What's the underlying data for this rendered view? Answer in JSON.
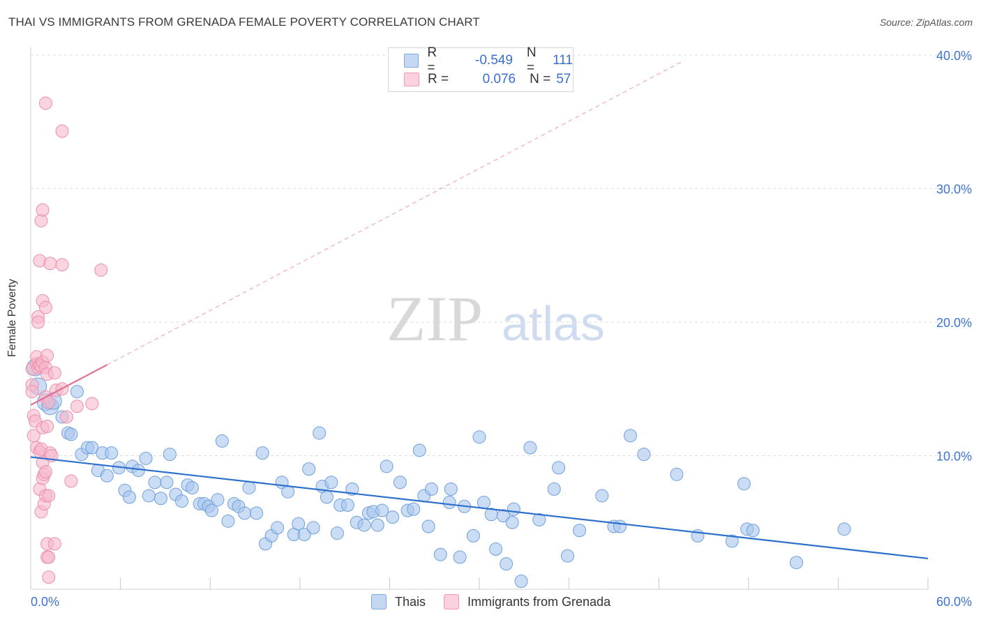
{
  "title": "THAI VS IMMIGRANTS FROM GRENADA FEMALE POVERTY CORRELATION CHART",
  "source": "Source: ZipAtlas.com",
  "watermark": {
    "zip": "ZIP",
    "atlas": "atlas"
  },
  "legend_top": [
    {
      "r_label": "R =",
      "r_value": "-0.549",
      "n_label": "N =",
      "n_value": "111",
      "color": "#a9c7ef"
    },
    {
      "r_label": "R =",
      "r_value": "0.076",
      "n_label": "N =",
      "n_value": "57",
      "color": "#f6b8ca"
    }
  ],
  "legend_bottom": [
    {
      "label": "Thais",
      "color": "#a9c7ef"
    },
    {
      "label": "Immigrants from Grenada",
      "color": "#f6b8ca"
    }
  ],
  "chart_data": {
    "type": "scatter",
    "title": "THAI VS IMMIGRANTS FROM GRENADA FEMALE POVERTY CORRELATION CHART",
    "xlabel": "",
    "ylabel": "Female Poverty",
    "xlim": [
      0,
      60
    ],
    "ylim": [
      0,
      40
    ],
    "x_tick_labels": [
      "0.0%",
      "60.0%"
    ],
    "y_ticks": [
      10,
      20,
      30,
      40
    ],
    "y_tick_labels": [
      "10.0%",
      "20.0%",
      "30.0%",
      "40.0%"
    ],
    "grid": true,
    "legend_position": "top-center",
    "series": [
      {
        "name": "Thais",
        "color": "#6e9fdc",
        "fill": "#a9c7ef",
        "trend": {
          "x": [
            0,
            60
          ],
          "y": [
            9.9,
            2.3
          ],
          "style": "solid",
          "stroke": "#2d6fcc"
        },
        "points": [
          [
            0.3,
            16.6
          ],
          [
            0.5,
            15.2
          ],
          [
            1.0,
            14.0
          ],
          [
            1.3,
            13.7
          ],
          [
            1.5,
            14.1
          ],
          [
            2.1,
            12.9
          ],
          [
            2.5,
            11.7
          ],
          [
            2.7,
            11.6
          ],
          [
            3.1,
            14.8
          ],
          [
            3.4,
            10.1
          ],
          [
            3.8,
            10.6
          ],
          [
            4.1,
            10.6
          ],
          [
            4.5,
            8.9
          ],
          [
            4.8,
            10.2
          ],
          [
            5.1,
            8.5
          ],
          [
            5.4,
            10.2
          ],
          [
            5.9,
            9.1
          ],
          [
            6.3,
            7.4
          ],
          [
            6.6,
            6.9
          ],
          [
            6.8,
            9.2
          ],
          [
            7.2,
            8.9
          ],
          [
            7.7,
            9.8
          ],
          [
            7.9,
            7.0
          ],
          [
            8.3,
            8.0
          ],
          [
            8.7,
            6.8
          ],
          [
            9.1,
            8.0
          ],
          [
            9.3,
            10.1
          ],
          [
            9.7,
            7.1
          ],
          [
            10.1,
            6.6
          ],
          [
            10.5,
            7.8
          ],
          [
            10.8,
            7.6
          ],
          [
            11.3,
            6.4
          ],
          [
            11.6,
            6.4
          ],
          [
            11.9,
            6.2
          ],
          [
            12.1,
            5.9
          ],
          [
            12.5,
            6.7
          ],
          [
            12.8,
            11.1
          ],
          [
            13.2,
            5.1
          ],
          [
            13.6,
            6.4
          ],
          [
            13.9,
            6.2
          ],
          [
            14.3,
            5.7
          ],
          [
            14.6,
            7.6
          ],
          [
            15.1,
            5.7
          ],
          [
            15.5,
            10.2
          ],
          [
            15.7,
            3.4
          ],
          [
            16.1,
            4.0
          ],
          [
            16.5,
            4.6
          ],
          [
            16.8,
            8.0
          ],
          [
            17.2,
            7.3
          ],
          [
            17.6,
            4.1
          ],
          [
            17.9,
            4.9
          ],
          [
            18.3,
            4.1
          ],
          [
            18.6,
            9.0
          ],
          [
            18.9,
            4.6
          ],
          [
            19.3,
            11.7
          ],
          [
            19.5,
            7.7
          ],
          [
            19.8,
            6.9
          ],
          [
            20.1,
            8.0
          ],
          [
            20.5,
            4.2
          ],
          [
            20.7,
            6.3
          ],
          [
            21.2,
            6.3
          ],
          [
            21.5,
            7.5
          ],
          [
            21.8,
            5.0
          ],
          [
            22.3,
            4.8
          ],
          [
            22.6,
            5.7
          ],
          [
            22.9,
            5.8
          ],
          [
            23.2,
            4.8
          ],
          [
            23.5,
            5.9
          ],
          [
            23.8,
            9.2
          ],
          [
            24.2,
            5.4
          ],
          [
            24.7,
            8.0
          ],
          [
            25.2,
            5.9
          ],
          [
            25.6,
            6.0
          ],
          [
            26.0,
            10.4
          ],
          [
            26.3,
            7.0
          ],
          [
            26.6,
            4.7
          ],
          [
            26.8,
            7.5
          ],
          [
            27.4,
            2.6
          ],
          [
            28.0,
            6.5
          ],
          [
            28.1,
            7.5
          ],
          [
            28.7,
            2.4
          ],
          [
            29.0,
            6.2
          ],
          [
            29.6,
            4.0
          ],
          [
            30.0,
            11.4
          ],
          [
            30.3,
            6.5
          ],
          [
            30.8,
            5.6
          ],
          [
            31.1,
            3.0
          ],
          [
            31.6,
            5.5
          ],
          [
            31.8,
            1.9
          ],
          [
            32.2,
            5.0
          ],
          [
            32.3,
            6.0
          ],
          [
            32.8,
            0.6
          ],
          [
            33.4,
            10.6
          ],
          [
            34.0,
            5.2
          ],
          [
            35.0,
            7.5
          ],
          [
            35.3,
            9.1
          ],
          [
            35.9,
            2.5
          ],
          [
            36.7,
            4.4
          ],
          [
            38.2,
            7.0
          ],
          [
            39.0,
            4.7
          ],
          [
            39.4,
            4.7
          ],
          [
            40.1,
            11.5
          ],
          [
            41.0,
            10.1
          ],
          [
            43.2,
            8.6
          ],
          [
            44.6,
            4.0
          ],
          [
            46.9,
            3.6
          ],
          [
            47.7,
            7.9
          ],
          [
            47.9,
            4.5
          ],
          [
            48.3,
            4.4
          ],
          [
            51.2,
            2.0
          ],
          [
            54.4,
            4.5
          ]
        ]
      },
      {
        "name": "Immigrants from Grenada",
        "color": "#ec8fac",
        "fill": "#f6b8ca",
        "trend": {
          "x": [
            0,
            5.1
          ],
          "y": [
            13.8,
            16.8
          ],
          "style": "solid",
          "stroke": "#e26f96",
          "extension": {
            "x": [
              5.1,
              43.7
            ],
            "y": [
              16.8,
              39.6
            ],
            "style": "dashed"
          }
        },
        "points": [
          [
            0.1,
            16.5
          ],
          [
            0.1,
            15.3
          ],
          [
            0.1,
            14.8
          ],
          [
            0.2,
            13.0
          ],
          [
            0.2,
            11.5
          ],
          [
            0.3,
            12.6
          ],
          [
            0.4,
            16.9
          ],
          [
            0.4,
            10.6
          ],
          [
            0.4,
            17.4
          ],
          [
            0.5,
            20.4
          ],
          [
            0.5,
            20.0
          ],
          [
            0.5,
            16.6
          ],
          [
            0.6,
            24.6
          ],
          [
            0.6,
            16.8
          ],
          [
            0.6,
            10.3
          ],
          [
            0.6,
            7.5
          ],
          [
            0.7,
            27.6
          ],
          [
            0.7,
            16.7
          ],
          [
            0.7,
            10.5
          ],
          [
            0.7,
            5.8
          ],
          [
            0.8,
            28.4
          ],
          [
            0.8,
            21.6
          ],
          [
            0.8,
            17.0
          ],
          [
            0.8,
            12.1
          ],
          [
            0.8,
            9.5
          ],
          [
            0.8,
            8.3
          ],
          [
            0.9,
            8.6
          ],
          [
            0.9,
            6.4
          ],
          [
            1.0,
            21.1
          ],
          [
            1.0,
            36.4
          ],
          [
            1.0,
            16.6
          ],
          [
            1.0,
            14.4
          ],
          [
            1.0,
            8.8
          ],
          [
            1.0,
            7.0
          ],
          [
            1.1,
            17.5
          ],
          [
            1.1,
            16.1
          ],
          [
            1.1,
            3.4
          ],
          [
            1.1,
            2.4
          ],
          [
            1.1,
            12.2
          ],
          [
            1.2,
            2.4
          ],
          [
            1.2,
            7.0
          ],
          [
            1.2,
            0.9
          ],
          [
            1.2,
            14.0
          ],
          [
            1.3,
            24.4
          ],
          [
            1.3,
            10.2
          ],
          [
            1.4,
            10.0
          ],
          [
            1.6,
            3.4
          ],
          [
            1.6,
            16.2
          ],
          [
            1.7,
            14.9
          ],
          [
            2.1,
            34.3
          ],
          [
            2.1,
            24.3
          ],
          [
            2.1,
            15.0
          ],
          [
            2.4,
            12.9
          ],
          [
            2.7,
            8.1
          ],
          [
            3.1,
            13.7
          ],
          [
            4.1,
            13.9
          ],
          [
            4.7,
            23.9
          ]
        ]
      }
    ]
  }
}
